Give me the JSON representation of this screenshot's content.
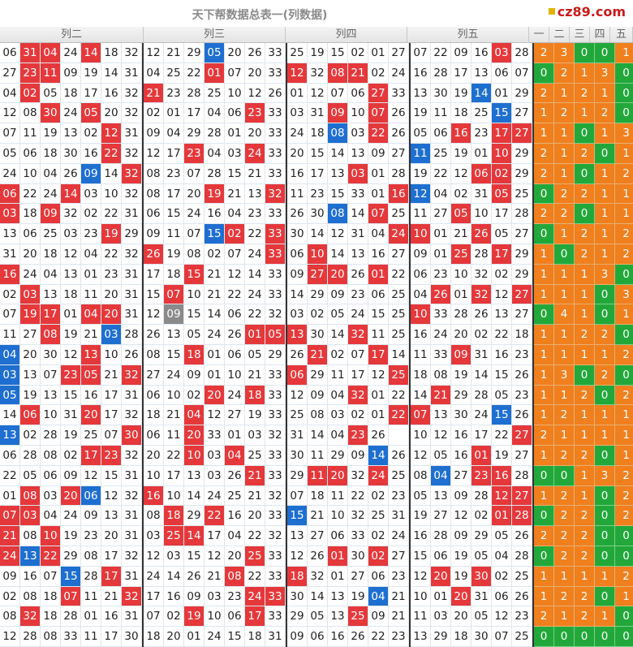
{
  "title": "天下帮数据总表一(列数据)",
  "watermark": "cz89.com",
  "stats_header_partial": "各列出号情况",
  "headers": [
    "列二",
    "列三",
    "列四",
    "列五"
  ],
  "stat_headers": [
    "一",
    "二",
    "三",
    "四",
    "五"
  ],
  "colors": {
    "red": "#e5383b",
    "blue": "#1e6fd0",
    "gray": "#8a8a8a",
    "orange": "#f07f1e",
    "green": "#22a83a"
  },
  "rows": [
    {
      "b": [
        [
          "06",
          "31r",
          "04r",
          "24",
          "14r",
          "18",
          "32"
        ],
        [
          "12",
          "21",
          "29",
          "05b",
          "20",
          "26",
          "33"
        ],
        [
          "25",
          "19",
          "15",
          "02",
          "01",
          "27"
        ],
        [
          "07",
          "22",
          "09",
          "16",
          "03r",
          "28"
        ]
      ],
      "s": [
        "2",
        "3",
        "0",
        "0",
        "1"
      ]
    },
    {
      "b": [
        [
          "27",
          "23r",
          "11r",
          "09",
          "19",
          "14",
          "31"
        ],
        [
          "04",
          "25",
          "22",
          "01r",
          "07",
          "20",
          "33"
        ],
        [
          "12r",
          "32",
          "08r",
          "21r",
          "02",
          "24",
          "33"
        ],
        [
          "16",
          "28",
          "17",
          "13",
          "06",
          "07"
        ]
      ],
      "s": [
        "0",
        "2",
        "1",
        "3",
        "0"
      ]
    },
    {
      "b": [
        [
          "04",
          "02r",
          "05",
          "18",
          "17",
          "16",
          "32"
        ],
        [
          "21r",
          "23",
          "28",
          "25",
          "10",
          "12",
          "26"
        ],
        [
          "01",
          "12",
          "07",
          "06",
          "27r",
          "33"
        ],
        [
          "13",
          "30",
          "19",
          "14b",
          "01",
          "29"
        ]
      ],
      "s": [
        "2",
        "1",
        "2",
        "1",
        "0"
      ]
    },
    {
      "b": [
        [
          "12",
          "08",
          "30r",
          "24",
          "05r",
          "20",
          "32"
        ],
        [
          "02",
          "01",
          "17",
          "04",
          "06",
          "23r",
          "33"
        ],
        [
          "03",
          "31",
          "09r",
          "10",
          "07r",
          "26"
        ],
        [
          "19",
          "11",
          "18",
          "25",
          "15b",
          "27"
        ]
      ],
      "s": [
        "1",
        "2",
        "1",
        "2",
        "0"
      ]
    },
    {
      "b": [
        [
          "07",
          "11",
          "19",
          "13",
          "02",
          "12r",
          "31"
        ],
        [
          "09",
          "04",
          "29",
          "28",
          "01",
          "20",
          "33"
        ],
        [
          "24",
          "18",
          "08b",
          "03",
          "22r",
          "26"
        ],
        [
          "05",
          "06",
          "16r",
          "23",
          "17r",
          "27r"
        ]
      ],
      "s": [
        "1",
        "1",
        "0",
        "1",
        "3"
      ]
    },
    {
      "b": [
        [
          "05",
          "06",
          "18",
          "30",
          "16",
          "22r",
          "32"
        ],
        [
          "12",
          "17",
          "23r",
          "04",
          "03",
          "24r",
          "33"
        ],
        [
          "20",
          "15",
          "14",
          "13",
          "09",
          "27"
        ],
        [
          "11b",
          "25",
          "19",
          "01",
          "10r",
          "29"
        ]
      ],
      "s": [
        "2",
        "1",
        "2",
        "0",
        "1"
      ]
    },
    {
      "b": [
        [
          "24",
          "10",
          "04",
          "26",
          "09b",
          "14",
          "32r"
        ],
        [
          "08",
          "23",
          "07",
          "28",
          "15",
          "21",
          "33"
        ],
        [
          "16",
          "17",
          "13",
          "03r",
          "01",
          "28"
        ],
        [
          "19",
          "22",
          "12",
          "06r",
          "02r",
          "29"
        ]
      ],
      "s": [
        "2",
        "1",
        "0",
        "1",
        "2"
      ]
    },
    {
      "b": [
        [
          "06r",
          "22",
          "24",
          "14r",
          "03",
          "10",
          "32"
        ],
        [
          "08",
          "17",
          "20",
          "19r",
          "21",
          "13",
          "32r"
        ],
        [
          "11",
          "23",
          "15",
          "33",
          "01",
          "16r"
        ],
        [
          "12b",
          "04",
          "02",
          "31",
          "05r",
          "25"
        ]
      ],
      "s": [
        "0",
        "2",
        "2",
        "1",
        "1"
      ]
    },
    {
      "b": [
        [
          "03r",
          "18",
          "09r",
          "32",
          "02",
          "22",
          "31"
        ],
        [
          "06",
          "15",
          "24",
          "16",
          "04",
          "23",
          "33"
        ],
        [
          "26",
          "30",
          "08b",
          "14",
          "07r",
          "25"
        ],
        [
          "11",
          "27",
          "05r",
          "10",
          "17",
          "28"
        ]
      ],
      "s": [
        "2",
        "2",
        "0",
        "1",
        "1"
      ]
    },
    {
      "b": [
        [
          "13",
          "06",
          "25",
          "03",
          "23",
          "19r",
          "29"
        ],
        [
          "09",
          "11",
          "07",
          "15b",
          "02r",
          "22",
          "33r"
        ],
        [
          "30",
          "14",
          "12",
          "31",
          "04",
          "24r"
        ],
        [
          "10r",
          "01",
          "21",
          "26r",
          "05",
          "27"
        ]
      ],
      "s": [
        "0",
        "1",
        "2",
        "1",
        "2"
      ]
    },
    {
      "b": [
        [
          "31",
          "20",
          "18",
          "12",
          "04",
          "22",
          "32"
        ],
        [
          "26r",
          "19",
          "08",
          "02",
          "07",
          "24",
          "33r"
        ],
        [
          "06",
          "10r",
          "14",
          "13",
          "16",
          "27"
        ],
        [
          "09",
          "01",
          "25r",
          "28",
          "17r",
          "29"
        ]
      ],
      "s": [
        "1",
        "0",
        "2",
        "1",
        "2"
      ]
    },
    {
      "b": [
        [
          "16r",
          "24",
          "04",
          "13",
          "01",
          "23",
          "31"
        ],
        [
          "17",
          "18",
          "15r",
          "21",
          "12",
          "14",
          "33"
        ],
        [
          "09",
          "27r",
          "20r",
          "26",
          "01r",
          "22"
        ],
        [
          "06",
          "23",
          "10",
          "32",
          "02",
          "29"
        ]
      ],
      "s": [
        "1",
        "1",
        "1",
        "3",
        "0"
      ]
    },
    {
      "b": [
        [
          "02",
          "03r",
          "13",
          "18",
          "11",
          "20",
          "31"
        ],
        [
          "15",
          "07r",
          "10",
          "21",
          "22",
          "24",
          "33"
        ],
        [
          "14",
          "29",
          "09",
          "23",
          "06",
          "25"
        ],
        [
          "04",
          "26r",
          "01",
          "32r",
          "12",
          "27r"
        ]
      ],
      "s": [
        "1",
        "1",
        "1",
        "0",
        "3"
      ]
    },
    {
      "b": [
        [
          "07",
          "19r",
          "17r",
          "01",
          "04r",
          "20r",
          "31"
        ],
        [
          "12",
          "09g",
          "15",
          "14",
          "06",
          "22",
          "32"
        ],
        [
          "03",
          "02",
          "05",
          "24",
          "15",
          "25"
        ],
        [
          "10r",
          "33",
          "28",
          "26",
          "13",
          "27"
        ]
      ],
      "s": [
        "0",
        "4",
        "1",
        "0",
        "1"
      ]
    },
    {
      "b": [
        [
          "11",
          "27",
          "08r",
          "19",
          "21",
          "03b",
          "28"
        ],
        [
          "26",
          "13",
          "05",
          "24",
          "26",
          "01r",
          "05r",
          "31"
        ],
        [
          "13r",
          "30",
          "14",
          "32r",
          "11",
          "25"
        ],
        [
          "16",
          "24",
          "20",
          "02",
          "22",
          "18"
        ]
      ],
      "s": [
        "1",
        "1",
        "2",
        "2",
        "0"
      ]
    },
    {
      "b": [
        [
          "04b",
          "20",
          "30",
          "12",
          "13r",
          "10",
          "26"
        ],
        [
          "08",
          "15",
          "18r",
          "01",
          "06",
          "05",
          "29"
        ],
        [
          "26",
          "21r",
          "02",
          "07",
          "17r",
          "14"
        ],
        [
          "11",
          "33",
          "09r",
          "31",
          "16",
          "23"
        ]
      ],
      "s": [
        "1",
        "1",
        "1",
        "1",
        "2"
      ]
    },
    {
      "b": [
        [
          "03b",
          "13",
          "07",
          "23r",
          "05r",
          "21",
          "32r"
        ],
        [
          "27",
          "24",
          "09",
          "01",
          "10",
          "21",
          "33"
        ],
        [
          "06r",
          "29",
          "11",
          "17",
          "12",
          "25r"
        ],
        [
          "18",
          "08",
          "19",
          "14",
          "15",
          "26"
        ]
      ],
      "s": [
        "1",
        "3",
        "0",
        "2",
        "0"
      ]
    },
    {
      "b": [
        [
          "05b",
          "19",
          "13",
          "15",
          "16",
          "17",
          "31"
        ],
        [
          "06",
          "10",
          "02",
          "20r",
          "24",
          "18r",
          "33"
        ],
        [
          "12",
          "09",
          "04",
          "32r",
          "01",
          "22"
        ],
        [
          "14",
          "21r",
          "29",
          "28",
          "05",
          "23"
        ]
      ],
      "s": [
        "1",
        "1",
        "2",
        "0",
        "2"
      ]
    },
    {
      "b": [
        [
          "14",
          "06r",
          "10",
          "31",
          "20r",
          "17",
          "32"
        ],
        [
          "18",
          "21",
          "04r",
          "12",
          "27",
          "19",
          "33"
        ],
        [
          "25",
          "08",
          "03",
          "02",
          "01",
          "22r"
        ],
        [
          "07r",
          "13",
          "30",
          "24",
          "15b",
          "26"
        ]
      ],
      "s": [
        "1",
        "2",
        "1",
        "1",
        "1"
      ]
    },
    {
      "b": [
        [
          "13b",
          "02",
          "28",
          "19",
          "25",
          "07",
          "30r"
        ],
        [
          "06",
          "11",
          "20r",
          "33",
          "01",
          "03",
          "32"
        ],
        [
          "31",
          "14",
          "04",
          "23r",
          "26"
        ],
        [
          "10",
          "12",
          "16",
          "17",
          "22",
          "27r"
        ]
      ],
      "s": [
        "2",
        "1",
        "1",
        "1",
        "1"
      ]
    },
    {
      "b": [
        [
          "06",
          "28",
          "08",
          "02",
          "17r",
          "23r",
          "32"
        ],
        [
          "20",
          "22",
          "10r",
          "03",
          "04r",
          "25",
          "33"
        ],
        [
          "30",
          "11",
          "29",
          "09",
          "14b",
          "26"
        ],
        [
          "12",
          "05",
          "16",
          "01r",
          "19",
          "27"
        ]
      ],
      "s": [
        "1",
        "2",
        "2",
        "0",
        "1"
      ]
    },
    {
      "b": [
        [
          "22",
          "05",
          "06",
          "09",
          "12",
          "15",
          "31"
        ],
        [
          "10",
          "17",
          "13",
          "03",
          "26",
          "21r",
          "33"
        ],
        [
          "29",
          "11r",
          "20r",
          "32",
          "24r",
          "25"
        ],
        [
          "08",
          "04b",
          "27",
          "23r",
          "16r",
          "28"
        ]
      ],
      "s": [
        "0",
        "0",
        "1",
        "3",
        "2"
      ]
    },
    {
      "b": [
        [
          "01",
          "08r",
          "03",
          "20r",
          "06b",
          "12",
          "32"
        ],
        [
          "16r",
          "10",
          "14",
          "24",
          "25",
          "21",
          "32"
        ],
        [
          "07",
          "18",
          "11",
          "22",
          "02",
          "23"
        ],
        [
          "05",
          "13",
          "09",
          "28",
          "12r",
          "27r"
        ]
      ],
      "s": [
        "1",
        "2",
        "1",
        "0",
        "2"
      ]
    },
    {
      "b": [
        [
          "07r",
          "03r",
          "04",
          "24",
          "09",
          "13",
          "31"
        ],
        [
          "08",
          "18r",
          "29",
          "22r",
          "16",
          "20",
          "33"
        ],
        [
          "15b",
          "21",
          "10",
          "32",
          "25",
          "31"
        ],
        [
          "19",
          "27",
          "12",
          "02",
          "01r",
          "28r"
        ]
      ],
      "s": [
        "0",
        "2",
        "2",
        "0",
        "2"
      ]
    },
    {
      "b": [
        [
          "21r",
          "08",
          "10r",
          "19",
          "23",
          "20",
          "31"
        ],
        [
          "03",
          "25r",
          "14r",
          "17",
          "04",
          "22",
          "32"
        ],
        [
          "13",
          "27",
          "06",
          "33",
          "02",
          "24"
        ],
        [
          "16",
          "28",
          "09",
          "29",
          "05",
          "26"
        ]
      ],
      "s": [
        "2",
        "2",
        "2",
        "0",
        "0"
      ]
    },
    {
      "b": [
        [
          "24r",
          "13b",
          "22r",
          "29",
          "08",
          "17",
          "32"
        ],
        [
          "12",
          "03",
          "15",
          "12",
          "20",
          "25r",
          "33"
        ],
        [
          "12",
          "26",
          "01r",
          "30",
          "02r",
          "27"
        ],
        [
          "15",
          "06",
          "19",
          "05",
          "04",
          "28"
        ]
      ],
      "s": [
        "0",
        "2",
        "2",
        "0",
        "0"
      ]
    },
    {
      "b": [
        [
          "09",
          "16",
          "07",
          "15b",
          "28",
          "17r",
          "31"
        ],
        [
          "24",
          "14",
          "26",
          "21",
          "08r",
          "22",
          "33"
        ],
        [
          "18r",
          "32",
          "01",
          "27",
          "06",
          "23"
        ],
        [
          "12",
          "20r",
          "19",
          "30r",
          "02",
          "25"
        ]
      ],
      "s": [
        "1",
        "1",
        "1",
        "1",
        "2"
      ]
    },
    {
      "b": [
        [
          "02",
          "08",
          "18",
          "07r",
          "11",
          "21",
          "32r"
        ],
        [
          "17",
          "16",
          "09",
          "03",
          "23",
          "24r",
          "33r"
        ],
        [
          "30",
          "14",
          "13",
          "19",
          "04b",
          "21"
        ],
        [
          "10",
          "01",
          "20r",
          "31",
          "06",
          "26"
        ]
      ],
      "s": [
        "1",
        "2",
        "2",
        "0",
        "1"
      ]
    },
    {
      "b": [
        [
          "08",
          "32r",
          "18",
          "28",
          "01",
          "16",
          "31"
        ],
        [
          "07",
          "02",
          "19r",
          "10",
          "06",
          "17r",
          "33"
        ],
        [
          "29",
          "05",
          "13",
          "25r",
          "09",
          "21"
        ],
        [
          "11",
          "03",
          "20",
          "05",
          "12",
          "23"
        ]
      ],
      "s": [
        "2",
        "1",
        "2",
        "1",
        "0"
      ]
    },
    {
      "b": [
        [
          "12",
          "28",
          "08",
          "33",
          "11",
          "17",
          "30"
        ],
        [
          "18",
          "20",
          "01",
          "24",
          "15",
          "18",
          "31"
        ],
        [
          "09",
          "06",
          "16",
          "26",
          "22",
          "23"
        ],
        [
          "13",
          "29",
          "18",
          "30",
          "07",
          "25"
        ]
      ],
      "s": [
        "0",
        "0",
        "0",
        "0",
        "0"
      ]
    }
  ]
}
